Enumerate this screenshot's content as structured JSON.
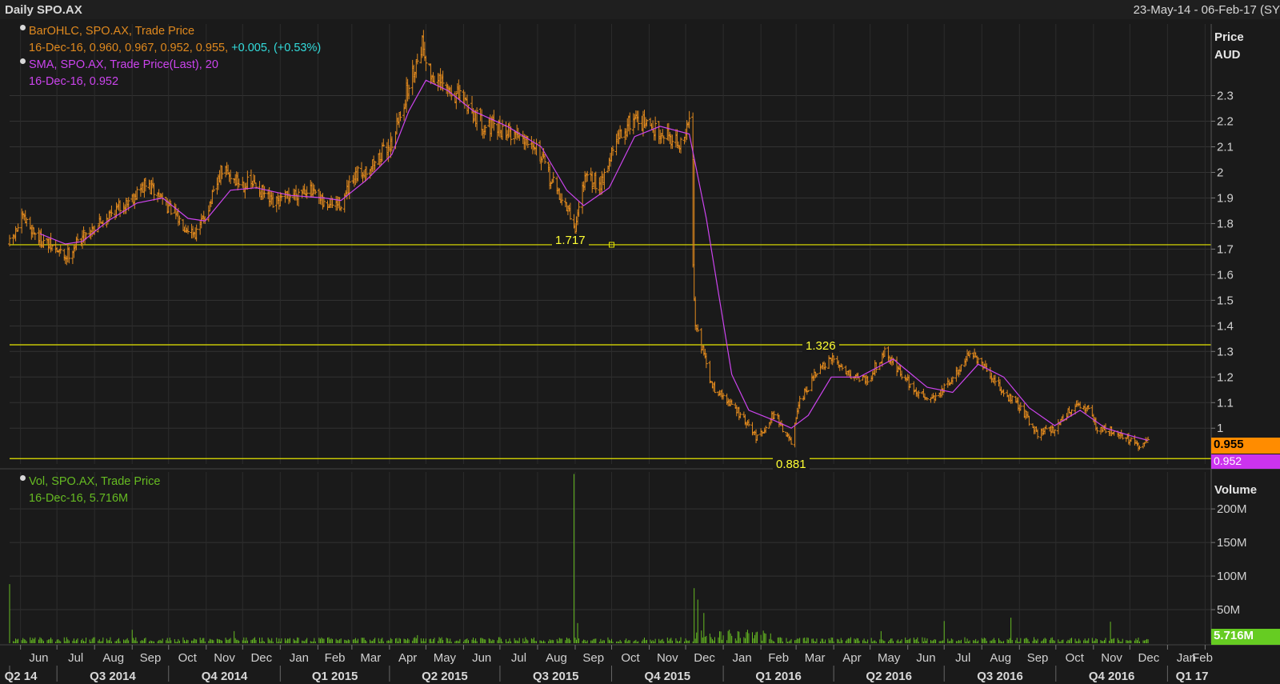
{
  "header": {
    "title": "Daily SPO.AX",
    "range": "23-May-14 - 06-Feb-17 (SY"
  },
  "legend": {
    "ohlc_title": "BarOHLC, SPO.AX, Trade Price",
    "ohlc_values": "16-Dec-16, 0.960, 0.967, 0.952, 0.955,",
    "ohlc_change": "+0.005, (+0.53%)",
    "sma_title": "SMA, SPO.AX, Trade Price(Last),  20",
    "sma_values": "16-Dec-16, 0.952",
    "vol_title": "Vol, SPO.AX, Trade Price",
    "vol_values": "16-Dec-16, 5.716M"
  },
  "price_axis": {
    "title_line1": "Price",
    "title_line2": "AUD",
    "last_price_tag": "0.955",
    "sma_tag": "0.952"
  },
  "volume_axis": {
    "title": "Volume",
    "last_volume_tag": "5.716M"
  },
  "horizontal_lines": [
    {
      "label": "1.717",
      "value": 1.717
    },
    {
      "label": "1.326",
      "value": 1.326
    },
    {
      "label": "0.881",
      "value": 0.881
    }
  ],
  "colors": {
    "background": "#1a1a1a",
    "price_bars": "#e0891e",
    "sma": "#cc44ee",
    "volume": "#66bb22",
    "hline": "#e6e600",
    "ohlc_change": "#33dddd",
    "grid": "#333333"
  },
  "chart_data": [
    {
      "type": "ohlc",
      "title": "Daily SPO.AX",
      "ylabel": "Price AUD",
      "ylim": [
        0.86,
        2.58
      ],
      "yticks": [
        "2.3",
        "2.2",
        "2.1",
        "2",
        "1.9",
        "1.8",
        "1.7",
        "1.6",
        "1.5",
        "1.4",
        "1.3",
        "1.2",
        "1.1",
        "1"
      ],
      "grid": true,
      "months": [
        "Jun",
        "Jul",
        "Aug",
        "Sep",
        "Oct",
        "Nov",
        "Dec",
        "Jan",
        "Feb",
        "Mar",
        "Apr",
        "May",
        "Jun",
        "Jul",
        "Aug",
        "Sep",
        "Oct",
        "Nov",
        "Dec",
        "Jan",
        "Feb",
        "Mar",
        "Apr",
        "May",
        "Jun",
        "Jul",
        "Aug",
        "Sep",
        "Oct",
        "Nov",
        "Dec",
        "Jan",
        "Feb"
      ],
      "quarters": [
        "Q2 14",
        "Q3 2014",
        "Q4 2014",
        "Q1 2015",
        "Q2 2015",
        "Q3 2015",
        "Q4 2015",
        "Q1 2016",
        "Q2 2016",
        "Q3 2016",
        "Q4 2016",
        "Q1 17"
      ],
      "series": [
        {
          "name": "BarOHLC, SPO.AX, Trade Price",
          "style": "ohlc",
          "close_path": [
            [
              "2014-05-23",
              1.72
            ],
            [
              "2014-06-03",
              1.82
            ],
            [
              "2014-06-17",
              1.74
            ],
            [
              "2014-07-08",
              1.67
            ],
            [
              "2014-07-22",
              1.75
            ],
            [
              "2014-08-12",
              1.83
            ],
            [
              "2014-08-26",
              1.88
            ],
            [
              "2014-09-12",
              1.95
            ],
            [
              "2014-09-26",
              1.9
            ],
            [
              "2014-10-10",
              1.81
            ],
            [
              "2014-10-24",
              1.76
            ],
            [
              "2014-11-07",
              1.91
            ],
            [
              "2014-11-14",
              2.01
            ],
            [
              "2014-11-28",
              1.96
            ],
            [
              "2014-12-12",
              1.95
            ],
            [
              "2014-12-26",
              1.87
            ],
            [
              "2015-01-09",
              1.91
            ],
            [
              "2015-01-23",
              1.94
            ],
            [
              "2015-02-06",
              1.87
            ],
            [
              "2015-02-20",
              1.88
            ],
            [
              "2015-03-06",
              1.99
            ],
            [
              "2015-03-20",
              2.04
            ],
            [
              "2015-04-03",
              2.12
            ],
            [
              "2015-04-17",
              2.34
            ],
            [
              "2015-04-28",
              2.51
            ],
            [
              "2015-05-05",
              2.38
            ],
            [
              "2015-05-19",
              2.32
            ],
            [
              "2015-06-02",
              2.28
            ],
            [
              "2015-06-16",
              2.19
            ],
            [
              "2015-06-30",
              2.17
            ],
            [
              "2015-07-14",
              2.15
            ],
            [
              "2015-07-28",
              2.13
            ],
            [
              "2015-08-11",
              1.98
            ],
            [
              "2015-08-25",
              1.86
            ],
            [
              "2015-09-01",
              1.78
            ],
            [
              "2015-09-08",
              1.97
            ],
            [
              "2015-09-22",
              1.96
            ],
            [
              "2015-10-06",
              2.13
            ],
            [
              "2015-10-20",
              2.22
            ],
            [
              "2015-11-03",
              2.17
            ],
            [
              "2015-11-17",
              2.15
            ],
            [
              "2015-11-27",
              2.1
            ],
            [
              "2015-12-04",
              2.2
            ],
            [
              "2015-12-08",
              1.44
            ],
            [
              "2015-12-22",
              1.17
            ],
            [
              "2016-01-12",
              1.07
            ],
            [
              "2016-01-29",
              0.96
            ],
            [
              "2016-02-12",
              1.06
            ],
            [
              "2016-02-26",
              0.94
            ],
            [
              "2016-03-04",
              1.1
            ],
            [
              "2016-03-18",
              1.22
            ],
            [
              "2016-04-01",
              1.27
            ],
            [
              "2016-04-15",
              1.21
            ],
            [
              "2016-04-29",
              1.19
            ],
            [
              "2016-05-13",
              1.3
            ],
            [
              "2016-05-27",
              1.21
            ],
            [
              "2016-06-10",
              1.13
            ],
            [
              "2016-06-24",
              1.12
            ],
            [
              "2016-07-08",
              1.19
            ],
            [
              "2016-07-22",
              1.3
            ],
            [
              "2016-08-05",
              1.22
            ],
            [
              "2016-08-19",
              1.14
            ],
            [
              "2016-09-02",
              1.08
            ],
            [
              "2016-09-16",
              0.98
            ],
            [
              "2016-09-30",
              1.0
            ],
            [
              "2016-10-14",
              1.08
            ],
            [
              "2016-10-28",
              1.08
            ],
            [
              "2016-11-04",
              1.0
            ],
            [
              "2016-11-18",
              0.99
            ],
            [
              "2016-12-02",
              0.95
            ],
            [
              "2016-12-09",
              0.92
            ],
            [
              "2016-12-16",
              0.955
            ]
          ]
        },
        {
          "name": "SMA, SPO.AX, Trade Price(Last),  20",
          "style": "line",
          "points": [
            [
              "2014-06-17",
              1.76
            ],
            [
              "2014-07-08",
              1.72
            ],
            [
              "2014-07-22",
              1.73
            ],
            [
              "2014-08-12",
              1.81
            ],
            [
              "2014-09-05",
              1.88
            ],
            [
              "2014-09-26",
              1.9
            ],
            [
              "2014-10-17",
              1.82
            ],
            [
              "2014-10-31",
              1.81
            ],
            [
              "2014-11-21",
              1.93
            ],
            [
              "2014-12-12",
              1.94
            ],
            [
              "2015-01-09",
              1.91
            ],
            [
              "2015-02-06",
              1.9
            ],
            [
              "2015-02-20",
              1.89
            ],
            [
              "2015-03-13",
              1.97
            ],
            [
              "2015-04-03",
              2.07
            ],
            [
              "2015-04-17",
              2.24
            ],
            [
              "2015-05-01",
              2.36
            ],
            [
              "2015-05-19",
              2.32
            ],
            [
              "2015-06-09",
              2.24
            ],
            [
              "2015-07-07",
              2.18
            ],
            [
              "2015-08-04",
              2.1
            ],
            [
              "2015-08-25",
              1.93
            ],
            [
              "2015-09-08",
              1.87
            ],
            [
              "2015-09-29",
              1.94
            ],
            [
              "2015-10-20",
              2.14
            ],
            [
              "2015-11-10",
              2.18
            ],
            [
              "2015-12-04",
              2.15
            ],
            [
              "2015-12-18",
              1.82
            ],
            [
              "2016-01-08",
              1.21
            ],
            [
              "2016-01-22",
              1.07
            ],
            [
              "2016-02-12",
              1.03
            ],
            [
              "2016-02-26",
              1.0
            ],
            [
              "2016-03-11",
              1.05
            ],
            [
              "2016-03-30",
              1.2
            ],
            [
              "2016-04-22",
              1.2
            ],
            [
              "2016-05-20",
              1.27
            ],
            [
              "2016-06-17",
              1.16
            ],
            [
              "2016-07-08",
              1.14
            ],
            [
              "2016-07-29",
              1.25
            ],
            [
              "2016-08-19",
              1.2
            ],
            [
              "2016-09-09",
              1.08
            ],
            [
              "2016-09-30",
              1.01
            ],
            [
              "2016-10-21",
              1.07
            ],
            [
              "2016-11-11",
              1.0
            ],
            [
              "2016-12-02",
              0.97
            ],
            [
              "2016-12-16",
              0.952
            ]
          ]
        }
      ],
      "annotations": [
        {
          "type": "hline",
          "value": 1.717,
          "label": "1.717"
        },
        {
          "type": "hline",
          "value": 1.326,
          "label": "1.326"
        },
        {
          "type": "hline",
          "value": 0.881,
          "label": "0.881"
        }
      ]
    },
    {
      "type": "bar",
      "title": "Vol, SPO.AX, Trade Price",
      "ylabel": "Volume",
      "ylim": [
        0,
        255000000
      ],
      "yticks": [
        "200M",
        "150M",
        "100M",
        "50M"
      ],
      "series": [
        {
          "name": "Vol, SPO.AX, Trade Price",
          "baseline_range": [
            2000000,
            9000000
          ],
          "spikes": [
            [
              "2014-05-23",
              88000000
            ],
            [
              "2014-09-01",
              20000000
            ],
            [
              "2014-11-24",
              18000000
            ],
            [
              "2015-04-24",
              12000000
            ],
            [
              "2015-08-31",
              252000000
            ],
            [
              "2015-09-03",
              30000000
            ],
            [
              "2015-12-08",
              82000000
            ],
            [
              "2015-12-11",
              65000000
            ],
            [
              "2015-12-16",
              45000000
            ],
            [
              "2016-01-21",
              20000000
            ],
            [
              "2016-05-10",
              18000000
            ],
            [
              "2016-07-01",
              33000000
            ],
            [
              "2016-08-25",
              38000000
            ],
            [
              "2016-11-15",
              32000000
            ],
            [
              "2016-12-16",
              5716000
            ]
          ]
        }
      ]
    }
  ]
}
